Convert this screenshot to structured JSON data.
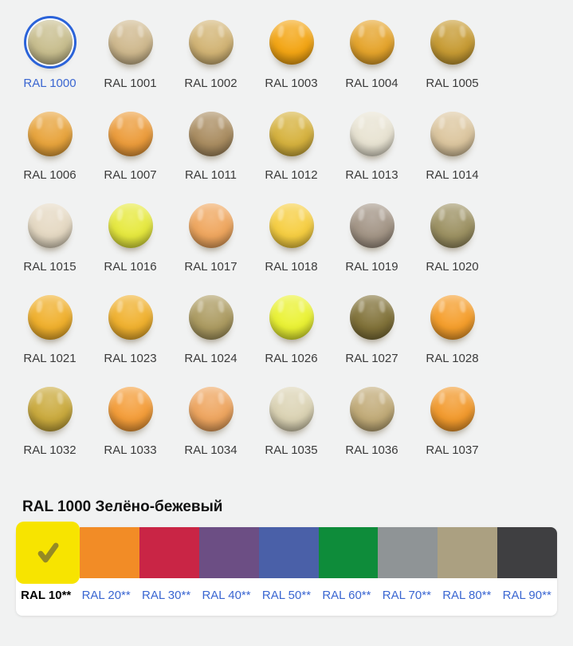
{
  "theme": {
    "page_bg": "#F1F2F2",
    "link_color": "#3A66D1",
    "selection_ring_color": "#2B63D9",
    "label_color": "#3A3A3A",
    "check_color": "#958A25"
  },
  "grid": {
    "items": [
      {
        "label": "RAL 1000",
        "hex": "#C8BE8E",
        "selected": true
      },
      {
        "label": "RAL 1001",
        "hex": "#CFB98E",
        "selected": false
      },
      {
        "label": "RAL 1002",
        "hex": "#D2B475",
        "selected": false
      },
      {
        "label": "RAL 1003",
        "hex": "#F3A513",
        "selected": false
      },
      {
        "label": "RAL 1004",
        "hex": "#E5A42B",
        "selected": false
      },
      {
        "label": "RAL 1005",
        "hex": "#C79B33",
        "selected": false
      },
      {
        "label": "RAL 1006",
        "hex": "#E8A43C",
        "selected": false
      },
      {
        "label": "RAL 1007",
        "hex": "#EC9C3B",
        "selected": false
      },
      {
        "label": "RAL 1011",
        "hex": "#AA8D61",
        "selected": false
      },
      {
        "label": "RAL 1012",
        "hex": "#D6B23E",
        "selected": false
      },
      {
        "label": "RAL 1013",
        "hex": "#E8E3D2",
        "selected": false
      },
      {
        "label": "RAL 1014",
        "hex": "#DCC69F",
        "selected": false
      },
      {
        "label": "RAL 1015",
        "hex": "#E5D9C3",
        "selected": false
      },
      {
        "label": "RAL 1016",
        "hex": "#E6E93E",
        "selected": false
      },
      {
        "label": "RAL 1017",
        "hex": "#EFA65E",
        "selected": false
      },
      {
        "label": "RAL 1018",
        "hex": "#F6CE41",
        "selected": false
      },
      {
        "label": "RAL 1019",
        "hex": "#A39586",
        "selected": false
      },
      {
        "label": "RAL 1020",
        "hex": "#9C9162",
        "selected": false
      },
      {
        "label": "RAL 1021",
        "hex": "#F0B02C",
        "selected": false
      },
      {
        "label": "RAL 1023",
        "hex": "#F0B12E",
        "selected": false
      },
      {
        "label": "RAL 1024",
        "hex": "#AC9B61",
        "selected": false
      },
      {
        "label": "RAL 1026",
        "hex": "#EAF233",
        "selected": false
      },
      {
        "label": "RAL 1027",
        "hex": "#817239",
        "selected": false
      },
      {
        "label": "RAL 1028",
        "hex": "#F59E2B",
        "selected": false
      },
      {
        "label": "RAL 1032",
        "hex": "#CAAA3D",
        "selected": false
      },
      {
        "label": "RAL 1033",
        "hex": "#F49D39",
        "selected": false
      },
      {
        "label": "RAL 1034",
        "hex": "#EEA55F",
        "selected": false
      },
      {
        "label": "RAL 1035",
        "hex": "#DBD3B4",
        "selected": false
      },
      {
        "label": "RAL 1036",
        "hex": "#C1AB78",
        "selected": false
      },
      {
        "label": "RAL 1037",
        "hex": "#F29A2D",
        "selected": false
      }
    ]
  },
  "detail": {
    "title": "RAL 1000 Зелёно-бежевый"
  },
  "palette": {
    "groups": [
      {
        "label": "RAL 10**",
        "hex": "#F7E400",
        "selected": true
      },
      {
        "label": "RAL 20**",
        "hex": "#F28C26",
        "selected": false
      },
      {
        "label": "RAL 30**",
        "hex": "#C92545",
        "selected": false
      },
      {
        "label": "RAL 40**",
        "hex": "#6C4E84",
        "selected": false
      },
      {
        "label": "RAL 50**",
        "hex": "#4A60A8",
        "selected": false
      },
      {
        "label": "RAL 60**",
        "hex": "#0E8C3A",
        "selected": false
      },
      {
        "label": "RAL 70**",
        "hex": "#8F9496",
        "selected": false
      },
      {
        "label": "RAL 80**",
        "hex": "#ABA081",
        "selected": false
      },
      {
        "label": "RAL 90**",
        "hex": "#3F3F41",
        "selected": false
      }
    ]
  }
}
